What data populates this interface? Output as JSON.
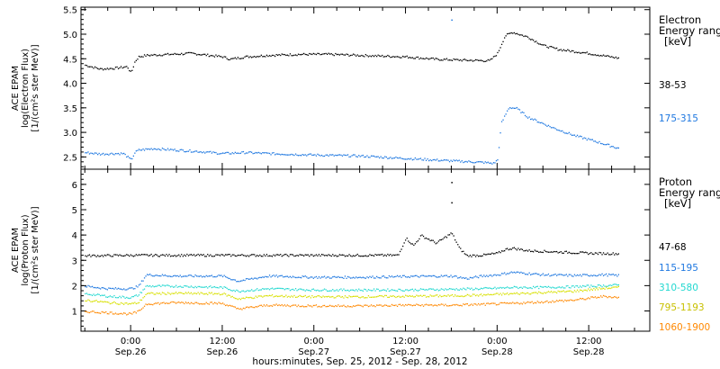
{
  "colors": {
    "s38_53": "#000000",
    "s175_315": "#1f78e0",
    "p47_68": "#000000",
    "p115_195": "#1f78e0",
    "p310_580": "#22d8d0",
    "p795_1193": "#d8e000",
    "p1060_1900": "#ff8800",
    "axis": "#000000"
  },
  "x_axis": {
    "title": "hours:minutes, Sep. 25, 2012 - Sep. 28, 2012",
    "ticks": [
      {
        "time": "0:00",
        "date": "Sep.26",
        "t": 0
      },
      {
        "time": "12:00",
        "date": "Sep.26",
        "t": 12
      },
      {
        "time": "0:00",
        "date": "Sep.27",
        "t": 24
      },
      {
        "time": "12:00",
        "date": "Sep.27",
        "t": 36
      },
      {
        "time": "0:00",
        "date": "Sep.28",
        "t": 48
      },
      {
        "time": "12:00",
        "date": "Sep.28",
        "t": 60
      }
    ],
    "range_hours": [
      -6.5,
      68
    ]
  },
  "chart_data": [
    {
      "type": "scatter",
      "ylabel_lines": [
        "ACE EPAM",
        "log(Electron Flux)",
        "[1/(cm²s ster MeV)]"
      ],
      "legend_title_lines": [
        "Electron",
        "Energy ranges",
        "[keV]"
      ],
      "ylim": [
        2.25,
        5.55
      ],
      "yticks": [
        "2.5",
        "3.0",
        "3.5",
        "4.0",
        "4.5",
        "5.0",
        "5.5"
      ],
      "ytick_values": [
        2.5,
        3.0,
        3.5,
        4.0,
        4.5,
        5.0,
        5.5
      ],
      "x_unit": "hours since 2012-09-26 00:00",
      "series": [
        {
          "name": "38-53",
          "color_key": "s38_53",
          "x": [
            -6,
            -4,
            -2,
            -0.5,
            0,
            0.5,
            1,
            2,
            5,
            8,
            12,
            13,
            15,
            18,
            22,
            26,
            30,
            36,
            40,
            44,
            47,
            48,
            49,
            50,
            52,
            54,
            56,
            60,
            64
          ],
          "y": [
            4.38,
            4.3,
            4.32,
            4.35,
            4.22,
            4.45,
            4.55,
            4.58,
            4.6,
            4.62,
            4.55,
            4.5,
            4.55,
            4.58,
            4.6,
            4.6,
            4.58,
            4.55,
            4.5,
            4.48,
            4.47,
            4.62,
            4.98,
            5.05,
            4.95,
            4.78,
            4.7,
            4.62,
            4.52
          ],
          "extra_points": [
            [
              42,
              5.3
            ]
          ]
        },
        {
          "name": "175-315",
          "color_key": "s175_315",
          "x": [
            -6,
            -4,
            -2,
            -1,
            0,
            0.5,
            1,
            3,
            6,
            9,
            12,
            15,
            18,
            24,
            30,
            36,
            42,
            46,
            47.5,
            48,
            48.5,
            49.5,
            50.5,
            52,
            55,
            58,
            61,
            64
          ],
          "y": [
            2.6,
            2.57,
            2.58,
            2.58,
            2.45,
            2.6,
            2.65,
            2.68,
            2.65,
            2.62,
            2.58,
            2.6,
            2.58,
            2.55,
            2.53,
            2.48,
            2.43,
            2.4,
            2.38,
            2.45,
            3.2,
            3.52,
            3.5,
            3.32,
            3.12,
            2.95,
            2.82,
            2.68
          ]
        }
      ]
    },
    {
      "type": "scatter",
      "ylabel_lines": [
        "ACE EPAM",
        "log(Proton Flux)",
        "[1/(cm²s ster MeV)]"
      ],
      "legend_title_lines": [
        "Proton",
        "Energy ranges",
        "[keV]"
      ],
      "ylim": [
        0.2,
        6.6
      ],
      "yticks": [
        "1",
        "2",
        "3",
        "4",
        "5",
        "6"
      ],
      "ytick_values": [
        1,
        2,
        3,
        4,
        5,
        6
      ],
      "x_unit": "hours since 2012-09-26 00:00",
      "series": [
        {
          "name": "47-68",
          "color_key": "p47_68",
          "x": [
            -6,
            0,
            6,
            12,
            18,
            24,
            30,
            35,
            36,
            37,
            38,
            40,
            42,
            43,
            44,
            46,
            48,
            49,
            50,
            52,
            56,
            60,
            64
          ],
          "y": [
            3.2,
            3.22,
            3.22,
            3.22,
            3.22,
            3.22,
            3.22,
            3.22,
            3.9,
            3.6,
            4.0,
            3.7,
            4.1,
            3.5,
            3.2,
            3.22,
            3.3,
            3.45,
            3.5,
            3.4,
            3.35,
            3.3,
            3.28
          ],
          "extra_points": [
            [
              42,
              6.1
            ],
            [
              42,
              5.3
            ]
          ]
        },
        {
          "name": "115-195",
          "color_key": "p115_195",
          "x": [
            -6,
            -3,
            0,
            1,
            2,
            6,
            12,
            14,
            18,
            24,
            30,
            36,
            42,
            44,
            46,
            48,
            50,
            54,
            58,
            62,
            64
          ],
          "y": [
            2.0,
            1.9,
            1.9,
            2.0,
            2.45,
            2.4,
            2.4,
            2.2,
            2.4,
            2.35,
            2.35,
            2.38,
            2.4,
            2.3,
            2.4,
            2.45,
            2.55,
            2.45,
            2.42,
            2.45,
            2.42
          ]
        },
        {
          "name": "310-580",
          "color_key": "p310_580",
          "x": [
            -6,
            -3,
            0,
            1,
            2,
            6,
            12,
            14,
            18,
            24,
            30,
            36,
            42,
            46,
            48,
            50,
            54,
            58,
            62,
            64
          ],
          "y": [
            1.7,
            1.6,
            1.55,
            1.65,
            2.0,
            2.0,
            1.95,
            1.8,
            1.9,
            1.85,
            1.85,
            1.85,
            1.88,
            1.9,
            1.92,
            1.95,
            1.95,
            1.98,
            2.02,
            2.05
          ]
        },
        {
          "name": "795-1193",
          "color_key": "p795_1193",
          "x": [
            -6,
            -3,
            0,
            1,
            2,
            6,
            12,
            14,
            18,
            24,
            30,
            36,
            42,
            46,
            48,
            50,
            54,
            58,
            62,
            64
          ],
          "y": [
            1.45,
            1.35,
            1.3,
            1.35,
            1.7,
            1.72,
            1.7,
            1.5,
            1.62,
            1.58,
            1.58,
            1.6,
            1.62,
            1.65,
            1.68,
            1.7,
            1.75,
            1.8,
            1.92,
            1.95
          ]
        },
        {
          "name": "1060-1900",
          "color_key": "p1060_1900",
          "x": [
            -6,
            -3,
            0,
            1,
            2,
            6,
            12,
            14,
            18,
            24,
            30,
            36,
            42,
            46,
            48,
            50,
            54,
            58,
            62,
            64
          ],
          "y": [
            1.0,
            0.95,
            0.9,
            1.0,
            1.3,
            1.35,
            1.32,
            1.1,
            1.25,
            1.22,
            1.22,
            1.25,
            1.25,
            1.28,
            1.3,
            1.32,
            1.38,
            1.45,
            1.6,
            1.55
          ]
        }
      ]
    }
  ]
}
